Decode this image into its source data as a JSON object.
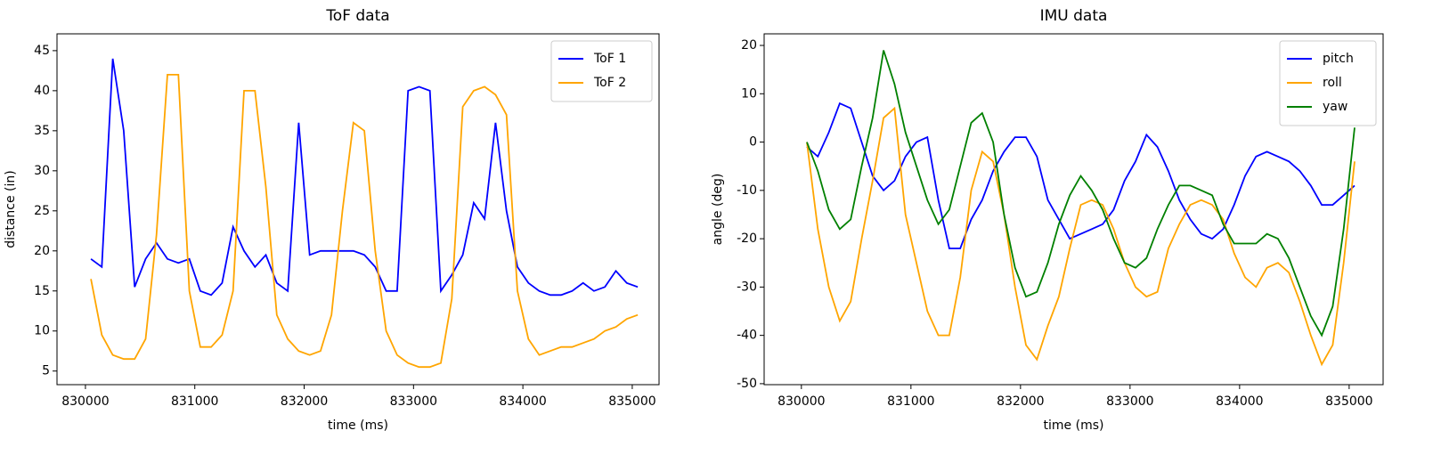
{
  "chart_data": [
    {
      "type": "line",
      "title": "ToF data",
      "xlabel": "time (ms)",
      "ylabel": "distance (in)",
      "x": [
        830050,
        830150,
        830250,
        830350,
        830450,
        830550,
        830650,
        830750,
        830850,
        830950,
        831050,
        831150,
        831250,
        831350,
        831450,
        831550,
        831650,
        831750,
        831850,
        831950,
        832050,
        832150,
        832250,
        832350,
        832450,
        832550,
        832650,
        832750,
        832850,
        832950,
        833050,
        833150,
        833250,
        833350,
        833450,
        833550,
        833650,
        833750,
        833850,
        833950,
        834050,
        834150,
        834250,
        834350,
        834450,
        834550,
        834650,
        834750,
        834850,
        834950,
        835050
      ],
      "series": [
        {
          "name": "ToF 1",
          "color": "#0000ff",
          "values": [
            19,
            18,
            44,
            35,
            15.5,
            19,
            21,
            19,
            18.5,
            19,
            15,
            14.5,
            16,
            23,
            20,
            18,
            19.5,
            16,
            15,
            36,
            19.5,
            20,
            20,
            20,
            20,
            19.5,
            18,
            15,
            15,
            40,
            40.5,
            40,
            15,
            17,
            19.5,
            26,
            24,
            36,
            25,
            18,
            16,
            15,
            14.5,
            14.5,
            15,
            16,
            15,
            15.5,
            17.5,
            16,
            15.5
          ]
        },
        {
          "name": "ToF 2",
          "color": "#ffa500",
          "values": [
            16.5,
            9.5,
            7,
            6.5,
            6.5,
            9,
            22,
            42,
            42,
            15,
            8,
            8,
            9.5,
            15,
            40,
            40,
            28,
            12,
            9,
            7.5,
            7,
            7.5,
            12,
            25,
            36,
            35,
            20,
            10,
            7,
            6,
            5.5,
            5.5,
            6,
            14,
            38,
            40,
            40.5,
            39.5,
            37,
            15,
            9,
            7,
            7.5,
            8,
            8,
            8.5,
            9,
            10,
            10.5,
            11.5,
            12
          ]
        }
      ],
      "xlim": [
        829740,
        835245
      ],
      "ylim": [
        3.3,
        47.1
      ],
      "xticks": [
        830000,
        831000,
        832000,
        833000,
        834000,
        835000
      ],
      "yticks": [
        5,
        10,
        15,
        20,
        25,
        30,
        35,
        40,
        45
      ],
      "legend": "upper right"
    },
    {
      "type": "line",
      "title": "IMU data",
      "xlabel": "time (ms)",
      "ylabel": "angle (deg)",
      "x": [
        830050,
        830150,
        830250,
        830350,
        830450,
        830550,
        830650,
        830750,
        830850,
        830950,
        831050,
        831150,
        831250,
        831350,
        831450,
        831550,
        831650,
        831750,
        831850,
        831950,
        832050,
        832150,
        832250,
        832350,
        832450,
        832550,
        832650,
        832750,
        832850,
        832950,
        833050,
        833150,
        833250,
        833350,
        833450,
        833550,
        833650,
        833750,
        833850,
        833950,
        834050,
        834150,
        834250,
        834350,
        834450,
        834550,
        834650,
        834750,
        834850,
        834950,
        835050
      ],
      "series": [
        {
          "name": "pitch",
          "color": "#0000ff",
          "values": [
            -1,
            -3,
            2,
            8,
            7,
            0,
            -7,
            -10,
            -8,
            -3,
            0,
            1,
            -12,
            -22,
            -22,
            -16,
            -12,
            -6,
            -2,
            1,
            1,
            -3,
            -12,
            -16,
            -20,
            -19,
            -18,
            -17,
            -14,
            -8,
            -4,
            1.5,
            -1,
            -6,
            -12,
            -16,
            -19,
            -20,
            -18,
            -13,
            -7,
            -3,
            -2,
            -3,
            -4,
            -6,
            -9,
            -13,
            -13,
            -11,
            -9
          ]
        },
        {
          "name": "roll",
          "color": "#ffa500",
          "values": [
            0,
            -18,
            -30,
            -37,
            -33,
            -20,
            -8,
            5,
            7,
            -15,
            -25,
            -35,
            -40,
            -40,
            -28,
            -10,
            -2,
            -4,
            -15,
            -30,
            -42,
            -45,
            -38,
            -32,
            -22,
            -13,
            -12,
            -13,
            -18,
            -25,
            -30,
            -32,
            -31,
            -22,
            -17,
            -13,
            -12,
            -13,
            -16,
            -23,
            -28,
            -30,
            -26,
            -25,
            -27,
            -33,
            -40,
            -46,
            -42,
            -25,
            -4
          ]
        },
        {
          "name": "yaw",
          "color": "#008000",
          "values": [
            0,
            -6,
            -14,
            -18,
            -16,
            -5,
            5,
            19,
            12,
            2,
            -5,
            -12,
            -17,
            -14,
            -5,
            4,
            6,
            0,
            -15,
            -26,
            -32,
            -31,
            -25,
            -17,
            -11,
            -7,
            -10,
            -14,
            -20,
            -25,
            -26,
            -24,
            -18,
            -13,
            -9,
            -9,
            -10,
            -11,
            -17,
            -21,
            -21,
            -21,
            -19,
            -20,
            -24,
            -30,
            -36,
            -40,
            -34,
            -18,
            3
          ]
        }
      ],
      "xlim": [
        829660,
        835310
      ],
      "ylim": [
        -50.2,
        22.4
      ],
      "xticks": [
        830000,
        831000,
        832000,
        833000,
        834000,
        835000
      ],
      "yticks": [
        -50,
        -40,
        -30,
        -20,
        -10,
        0,
        10,
        20
      ],
      "legend": "upper right"
    }
  ]
}
